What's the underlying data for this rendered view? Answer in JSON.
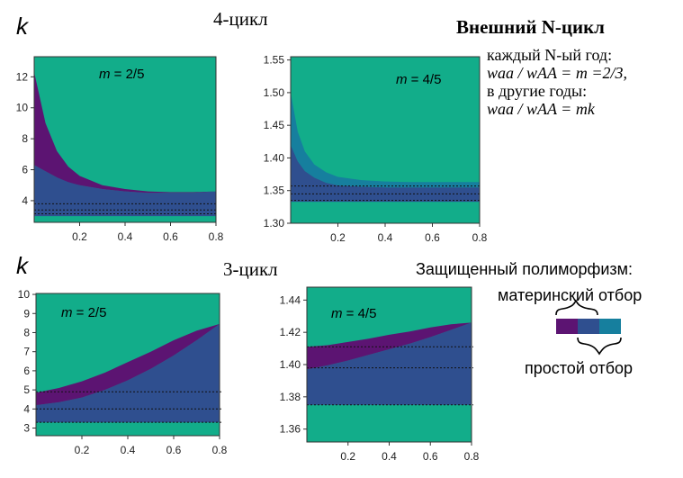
{
  "labels": {
    "k_top": "k",
    "k_bottom": "k",
    "cycle4": "4-цикл",
    "cycle3": "3-цикл",
    "external_title": "Внешний N-цикл",
    "rule_line1": "каждый N-ый год:",
    "rule_line2": "waa / wAA = m =2/3,",
    "rule_line3": "в другие годы:",
    "rule_line4": "waa / wAA = mk",
    "legend_title": "Защищенный полиморфизм:",
    "legend_maternal": "материнский отбор",
    "legend_simple": "простой отбор"
  },
  "colors": {
    "green": "#12ad8a",
    "navy": "#2f4f8f",
    "purple": "#5c1472",
    "teal": "#167f9e",
    "dotted": "#111111"
  },
  "legend_swatches": [
    "purple",
    "navy",
    "teal"
  ],
  "chart_data": [
    {
      "id": "c1",
      "type": "area",
      "annotation": "m = 2/5",
      "xlim": [
        0,
        0.8
      ],
      "ylim": [
        2.6,
        13.3
      ],
      "xticks": [
        0.2,
        0.4,
        0.6,
        0.8
      ],
      "xtick_labels": [
        "0.2",
        "0.4",
        "0.6",
        "0.8"
      ],
      "yticks": [
        4,
        6,
        8,
        10,
        12
      ],
      "ytick_labels": [
        "4",
        "6",
        "8",
        "10",
        "12"
      ],
      "bands": [
        {
          "color": "navy",
          "x": [
            0,
            0.1,
            0.2,
            0.3,
            0.4,
            0.5,
            0.6,
            0.7,
            0.8
          ],
          "lower": [
            3.0,
            3.0,
            3.0,
            3.0,
            3.0,
            3.0,
            3.0,
            3.0,
            3.0
          ],
          "upper": [
            6.3,
            5.5,
            5.0,
            4.75,
            4.6,
            4.5,
            4.5,
            4.5,
            4.6
          ]
        },
        {
          "color": "purple",
          "x": [
            0,
            0.05,
            0.1,
            0.15,
            0.2,
            0.3,
            0.4,
            0.5,
            0.6,
            0.7,
            0.8
          ],
          "lower": [
            6.3,
            5.9,
            5.5,
            5.2,
            5.0,
            4.75,
            4.6,
            4.5,
            4.5,
            4.5,
            4.6
          ],
          "upper": [
            12.3,
            9.0,
            7.2,
            6.2,
            5.6,
            5.0,
            4.75,
            4.6,
            4.55,
            4.55,
            4.6
          ]
        }
      ],
      "dotted_lines": [
        3.8,
        3.4,
        3.15
      ]
    },
    {
      "id": "c2",
      "type": "area",
      "annotation": "m = 4/5",
      "xlim": [
        0,
        0.8
      ],
      "ylim": [
        1.3,
        1.555
      ],
      "xticks": [
        0.2,
        0.4,
        0.6,
        0.8
      ],
      "xtick_labels": [
        "0.2",
        "0.4",
        "0.6",
        "0.8"
      ],
      "yticks": [
        1.3,
        1.35,
        1.4,
        1.45,
        1.5,
        1.55
      ],
      "ytick_labels": [
        "1.30",
        "1.35",
        "1.40",
        "1.45",
        "1.50",
        "1.55"
      ],
      "bands": [
        {
          "color": "navy",
          "x": [
            0,
            0.03,
            0.06,
            0.1,
            0.15,
            0.2,
            0.3,
            0.4,
            0.5,
            0.6,
            0.7,
            0.8
          ],
          "lower": [
            1.333,
            1.333,
            1.333,
            1.333,
            1.333,
            1.333,
            1.333,
            1.333,
            1.333,
            1.333,
            1.333,
            1.333
          ],
          "upper": [
            1.42,
            1.395,
            1.38,
            1.37,
            1.362,
            1.358,
            1.356,
            1.355,
            1.355,
            1.355,
            1.355,
            1.355
          ]
        },
        {
          "color": "teal",
          "x": [
            0,
            0.03,
            0.06,
            0.1,
            0.15,
            0.2,
            0.3,
            0.4,
            0.5,
            0.6,
            0.7,
            0.8
          ],
          "lower": [
            1.42,
            1.395,
            1.38,
            1.37,
            1.362,
            1.358,
            1.356,
            1.355,
            1.355,
            1.355,
            1.355,
            1.355
          ],
          "upper": [
            1.5,
            1.44,
            1.41,
            1.39,
            1.378,
            1.371,
            1.366,
            1.364,
            1.363,
            1.363,
            1.363,
            1.363
          ]
        }
      ],
      "dotted_lines": [
        1.357,
        1.345,
        1.335
      ]
    },
    {
      "id": "c3",
      "type": "area",
      "annotation": "m = 2/5",
      "xlim": [
        0,
        0.8
      ],
      "ylim": [
        2.6,
        10.05
      ],
      "xticks": [
        0.2,
        0.4,
        0.6,
        0.8
      ],
      "xtick_labels": [
        "0.2",
        "0.4",
        "0.6",
        "0.8"
      ],
      "yticks": [
        3,
        4,
        5,
        6,
        7,
        8,
        9,
        10
      ],
      "ytick_labels": [
        "3",
        "4",
        "5",
        "6",
        "7",
        "8",
        "9",
        "10"
      ],
      "bands": [
        {
          "color": "navy",
          "x": [
            0,
            0.1,
            0.2,
            0.3,
            0.4,
            0.5,
            0.6,
            0.7,
            0.8
          ],
          "lower": [
            3.3,
            3.3,
            3.3,
            3.3,
            3.3,
            3.3,
            3.3,
            3.3,
            3.3
          ],
          "upper": [
            4.2,
            4.35,
            4.6,
            5.0,
            5.5,
            6.1,
            6.8,
            7.6,
            8.45
          ]
        },
        {
          "color": "purple",
          "x": [
            0,
            0.1,
            0.2,
            0.3,
            0.4,
            0.5,
            0.6,
            0.7,
            0.8
          ],
          "lower": [
            4.2,
            4.35,
            4.6,
            5.0,
            5.5,
            6.1,
            6.8,
            7.6,
            8.45
          ],
          "upper": [
            4.85,
            5.1,
            5.45,
            5.9,
            6.45,
            7.0,
            7.6,
            8.1,
            8.45
          ]
        }
      ],
      "dotted_lines": [
        4.9,
        4.0,
        3.3
      ]
    },
    {
      "id": "c4",
      "type": "area",
      "annotation": "m = 4/5",
      "xlim": [
        0,
        0.8
      ],
      "ylim": [
        1.352,
        1.448
      ],
      "xticks": [
        0.2,
        0.4,
        0.6,
        0.8
      ],
      "xtick_labels": [
        "0.2",
        "0.4",
        "0.6",
        "0.8"
      ],
      "yticks": [
        1.36,
        1.38,
        1.4,
        1.42,
        1.44
      ],
      "ytick_labels": [
        "1.36",
        "1.38",
        "1.40",
        "1.42",
        "1.44"
      ],
      "bands": [
        {
          "color": "navy",
          "x": [
            0,
            0.1,
            0.2,
            0.3,
            0.4,
            0.5,
            0.6,
            0.7,
            0.8
          ],
          "lower": [
            1.375,
            1.375,
            1.375,
            1.375,
            1.375,
            1.375,
            1.375,
            1.375,
            1.375
          ],
          "upper": [
            1.397,
            1.3995,
            1.4025,
            1.406,
            1.4095,
            1.413,
            1.417,
            1.4215,
            1.426
          ]
        },
        {
          "color": "purple",
          "x": [
            0,
            0.1,
            0.2,
            0.3,
            0.4,
            0.5,
            0.6,
            0.7,
            0.8
          ],
          "lower": [
            1.397,
            1.3995,
            1.4025,
            1.406,
            1.4095,
            1.413,
            1.417,
            1.4215,
            1.426
          ],
          "upper": [
            1.411,
            1.412,
            1.414,
            1.416,
            1.4185,
            1.4205,
            1.423,
            1.425,
            1.426
          ]
        }
      ],
      "dotted_lines": [
        1.411,
        1.398,
        1.375
      ]
    }
  ]
}
